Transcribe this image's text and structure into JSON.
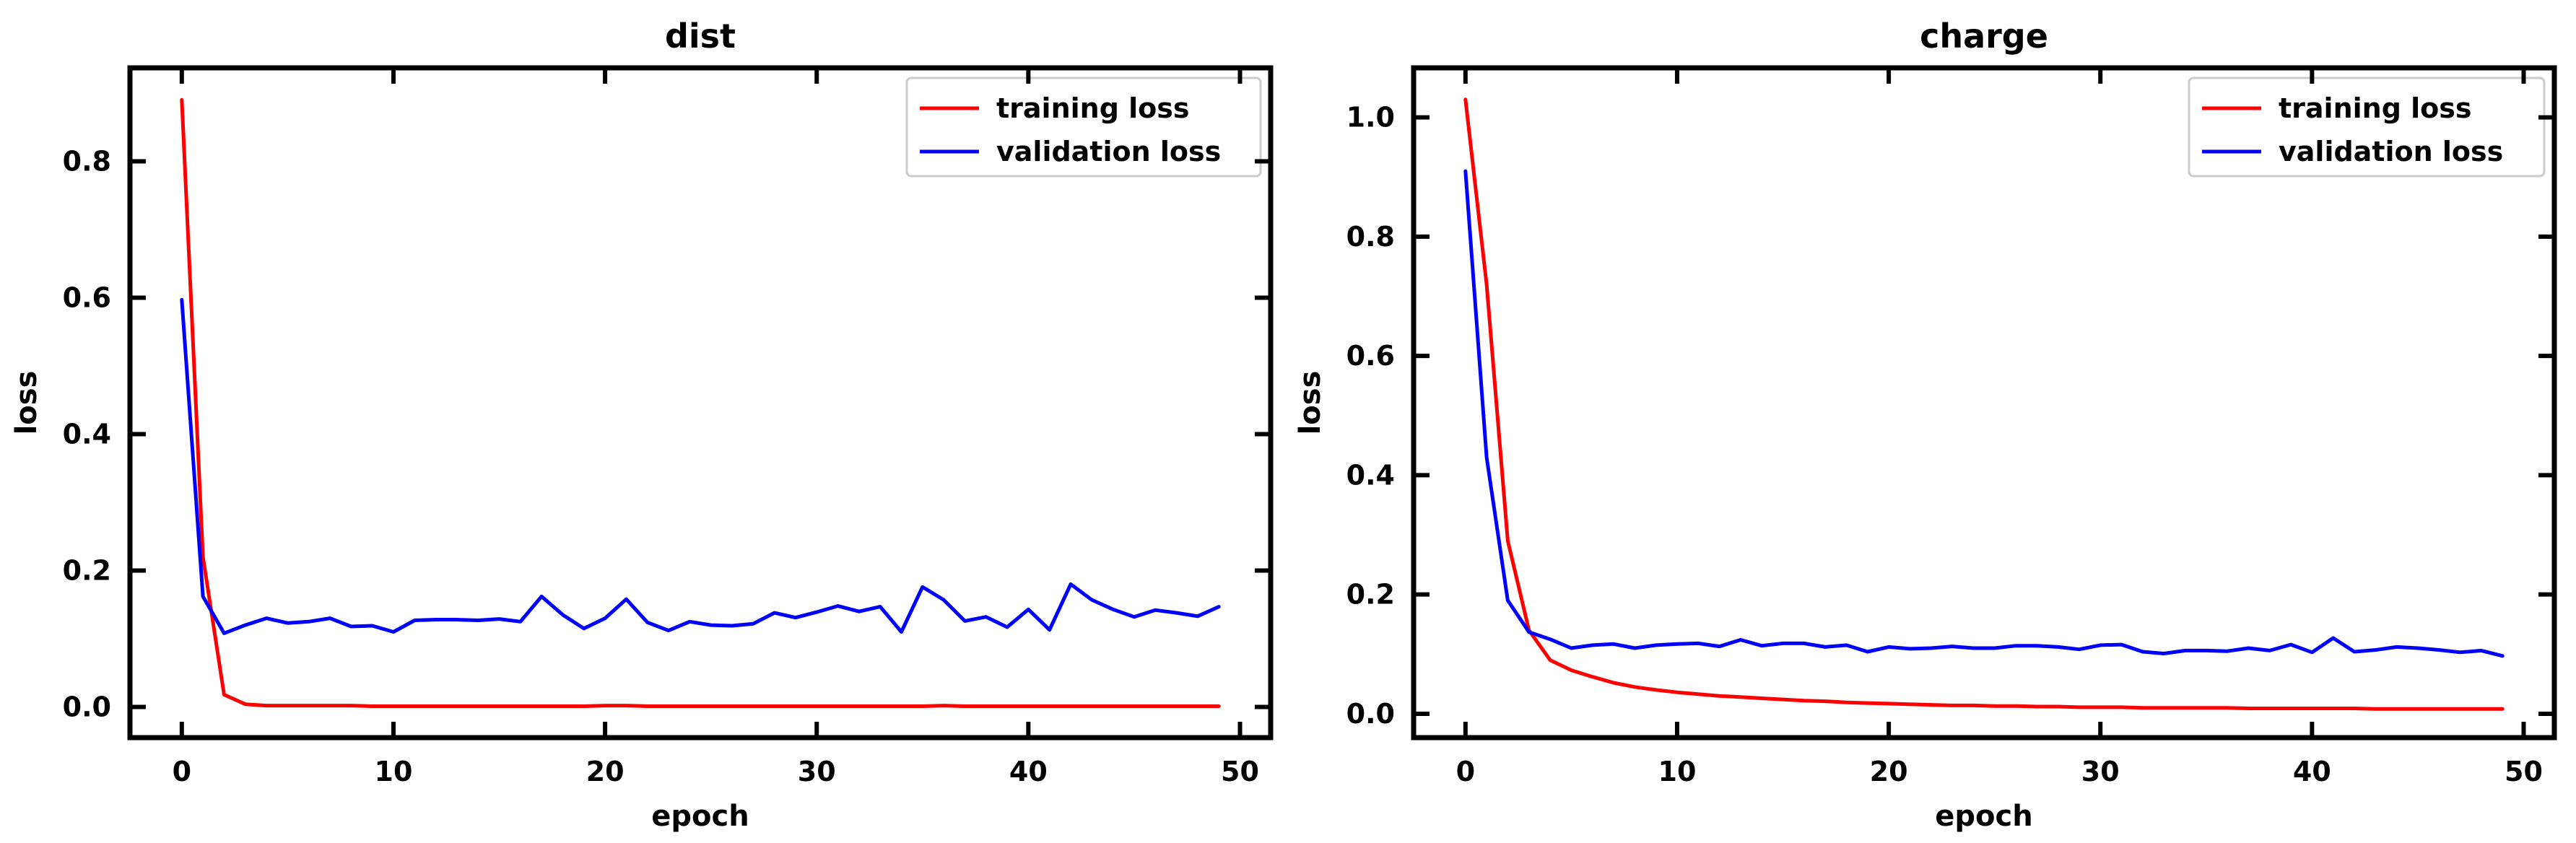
{
  "chart_data": [
    {
      "type": "line",
      "title": "dist",
      "xlabel": "epoch",
      "ylabel": "loss",
      "xlim": [
        -2.45,
        51.45
      ],
      "ylim": [
        -0.045,
        0.937
      ],
      "xticks": [
        0,
        10,
        20,
        30,
        40,
        50
      ],
      "yticks": [
        0.0,
        0.2,
        0.4,
        0.6,
        0.8
      ],
      "xtick_labels": [
        "0",
        "10",
        "20",
        "30",
        "40",
        "50"
      ],
      "ytick_labels": [
        "0.0",
        "0.2",
        "0.4",
        "0.6",
        "0.8"
      ],
      "grid": false,
      "legend_position": "upper-right",
      "x": [
        0,
        1,
        2,
        3,
        4,
        5,
        6,
        7,
        8,
        9,
        10,
        11,
        12,
        13,
        14,
        15,
        16,
        17,
        18,
        19,
        20,
        21,
        22,
        23,
        24,
        25,
        26,
        27,
        28,
        29,
        30,
        31,
        32,
        33,
        34,
        35,
        36,
        37,
        38,
        39,
        40,
        41,
        42,
        43,
        44,
        45,
        46,
        47,
        48,
        49
      ],
      "series": [
        {
          "name": "training loss",
          "color": "#ff0000",
          "values": [
            0.89,
            0.22,
            0.018,
            0.004,
            0.002,
            0.002,
            0.002,
            0.002,
            0.002,
            0.001,
            0.001,
            0.001,
            0.001,
            0.001,
            0.001,
            0.001,
            0.001,
            0.001,
            0.001,
            0.001,
            0.002,
            0.002,
            0.001,
            0.001,
            0.001,
            0.001,
            0.001,
            0.001,
            0.001,
            0.001,
            0.001,
            0.001,
            0.001,
            0.001,
            0.001,
            0.001,
            0.002,
            0.001,
            0.001,
            0.001,
            0.001,
            0.001,
            0.001,
            0.001,
            0.001,
            0.001,
            0.001,
            0.001,
            0.001,
            0.001
          ]
        },
        {
          "name": "validation loss",
          "color": "#0000ff",
          "values": [
            0.597,
            0.162,
            0.108,
            0.12,
            0.13,
            0.123,
            0.125,
            0.13,
            0.118,
            0.119,
            0.11,
            0.127,
            0.128,
            0.128,
            0.127,
            0.129,
            0.125,
            0.162,
            0.135,
            0.115,
            0.13,
            0.158,
            0.124,
            0.112,
            0.125,
            0.12,
            0.119,
            0.122,
            0.138,
            0.131,
            0.139,
            0.148,
            0.14,
            0.147,
            0.11,
            0.176,
            0.157,
            0.126,
            0.132,
            0.117,
            0.143,
            0.113,
            0.18,
            0.157,
            0.143,
            0.132,
            0.142,
            0.138,
            0.133,
            0.147
          ]
        }
      ]
    },
    {
      "type": "line",
      "title": "charge",
      "xlabel": "epoch",
      "ylabel": "loss",
      "xlim": [
        -2.45,
        51.45
      ],
      "ylim": [
        -0.04,
        1.083
      ],
      "xticks": [
        0,
        10,
        20,
        30,
        40,
        50
      ],
      "yticks": [
        0.0,
        0.2,
        0.4,
        0.6,
        0.8,
        1.0
      ],
      "xtick_labels": [
        "0",
        "10",
        "20",
        "30",
        "40",
        "50"
      ],
      "ytick_labels": [
        "0.0",
        "0.2",
        "0.4",
        "0.6",
        "0.8",
        "1.0"
      ],
      "grid": false,
      "legend_position": "upper-right",
      "x": [
        0,
        1,
        2,
        3,
        4,
        5,
        6,
        7,
        8,
        9,
        10,
        11,
        12,
        13,
        14,
        15,
        16,
        17,
        18,
        19,
        20,
        21,
        22,
        23,
        24,
        25,
        26,
        27,
        28,
        29,
        30,
        31,
        32,
        33,
        34,
        35,
        36,
        37,
        38,
        39,
        40,
        41,
        42,
        43,
        44,
        45,
        46,
        47,
        48,
        49
      ],
      "series": [
        {
          "name": "training loss",
          "color": "#ff0000",
          "values": [
            1.03,
            0.72,
            0.29,
            0.14,
            0.09,
            0.073,
            0.062,
            0.052,
            0.045,
            0.04,
            0.036,
            0.033,
            0.03,
            0.028,
            0.026,
            0.024,
            0.022,
            0.021,
            0.019,
            0.018,
            0.017,
            0.016,
            0.015,
            0.014,
            0.014,
            0.013,
            0.013,
            0.012,
            0.012,
            0.011,
            0.011,
            0.011,
            0.01,
            0.01,
            0.01,
            0.01,
            0.01,
            0.009,
            0.009,
            0.009,
            0.009,
            0.009,
            0.009,
            0.008,
            0.008,
            0.008,
            0.008,
            0.008,
            0.008,
            0.008
          ]
        },
        {
          "name": "validation loss",
          "color": "#0000ff",
          "values": [
            0.91,
            0.43,
            0.19,
            0.137,
            0.125,
            0.11,
            0.115,
            0.117,
            0.11,
            0.115,
            0.117,
            0.118,
            0.113,
            0.124,
            0.114,
            0.118,
            0.118,
            0.112,
            0.115,
            0.104,
            0.112,
            0.109,
            0.11,
            0.113,
            0.11,
            0.11,
            0.114,
            0.114,
            0.112,
            0.108,
            0.115,
            0.116,
            0.104,
            0.101,
            0.106,
            0.106,
            0.105,
            0.11,
            0.106,
            0.116,
            0.103,
            0.127,
            0.104,
            0.107,
            0.112,
            0.11,
            0.107,
            0.103,
            0.106,
            0.097
          ]
        }
      ]
    }
  ]
}
